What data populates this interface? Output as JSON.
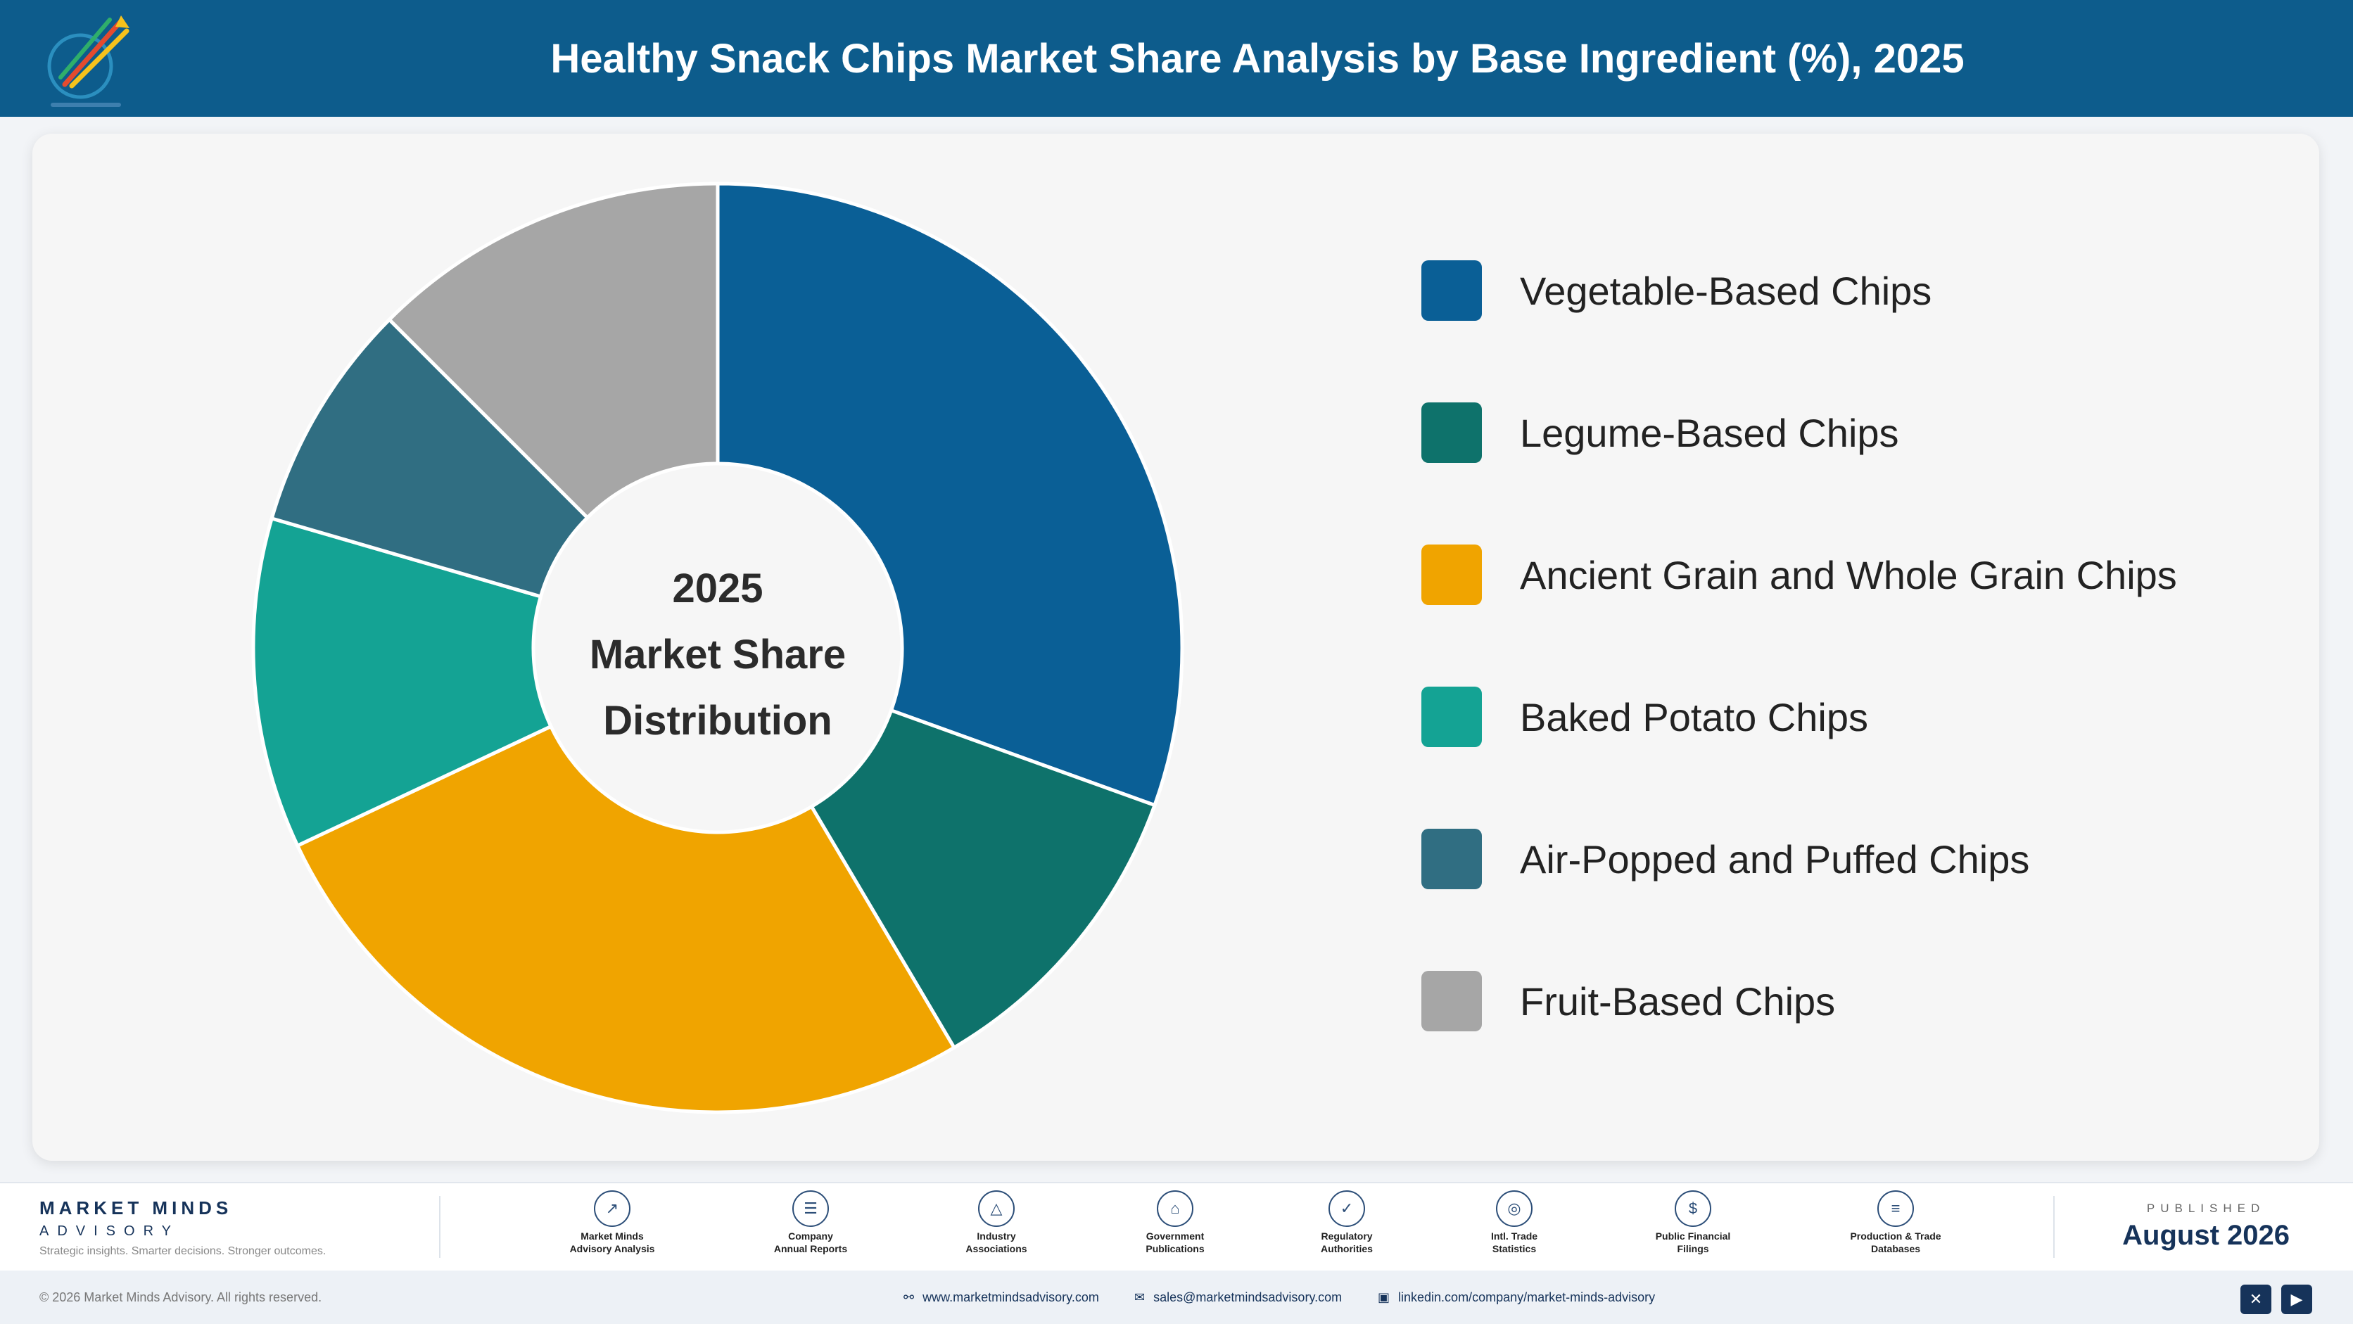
{
  "header": {
    "title": "Healthy Snack Chips Market Share Analysis by Base Ingredient (%), 2025",
    "logo_icon": "rocket-logo-icon",
    "background": "#0d5c8c"
  },
  "chart": {
    "center_line1": "2025",
    "center_line2": "Market Share",
    "center_line3": "Distribution"
  },
  "chart_data": {
    "type": "pie",
    "variant": "donut",
    "title": "Healthy Snack Chips Market Share Analysis by Base Ingredient (%), 2025",
    "categories": [
      "Vegetable-Based Chips",
      "Legume-Based Chips",
      "Ancient Grain and Whole Grain Chips",
      "Baked Potato Chips",
      "Air-Popped and Puffed Chips",
      "Fruit-Based Chips"
    ],
    "values": [
      30.5,
      11.0,
      26.5,
      11.5,
      8.0,
      12.5
    ],
    "colors": [
      "#0a5f96",
      "#0e726b",
      "#f0a400",
      "#14a394",
      "#306e82",
      "#a6a6a6"
    ],
    "start_angle_deg": 0,
    "direction": "clockwise",
    "legend_position": "right"
  },
  "footer": {
    "brand_name": "MARKET MINDS",
    "brand_sub": "ADVISORY",
    "brand_tagline": "Strategic insights. Smarter decisions. Stronger outcomes.",
    "sources": [
      {
        "icon": "trend-chart-icon",
        "line1": "Market Minds",
        "line2": "Advisory Analysis"
      },
      {
        "icon": "document-icon",
        "line1": "Company",
        "line2": "Annual Reports"
      },
      {
        "icon": "network-icon",
        "line1": "Industry",
        "line2": "Associations"
      },
      {
        "icon": "government-building-icon",
        "line1": "Government",
        "line2": "Publications"
      },
      {
        "icon": "shield-check-icon",
        "line1": "Regulatory",
        "line2": "Authorities"
      },
      {
        "icon": "globe-icon",
        "line1": "Intl. Trade",
        "line2": "Statistics"
      },
      {
        "icon": "dollar-coin-icon",
        "line1": "Public Financial",
        "line2": "Filings"
      },
      {
        "icon": "database-icon",
        "line1": "Production & Trade",
        "line2": "Databases"
      }
    ],
    "published_label": "PUBLISHED",
    "published_date": "August 2026"
  },
  "bottom_bar": {
    "copyright": "© 2026 Market Minds Advisory. All rights reserved.",
    "website": "www.marketmindsadvisory.com",
    "email": "sales@marketmindsadvisory.com",
    "linkedin": "linkedin.com/company/market-minds-advisory",
    "social_icons": [
      "x-icon",
      "youtube-icon"
    ]
  }
}
